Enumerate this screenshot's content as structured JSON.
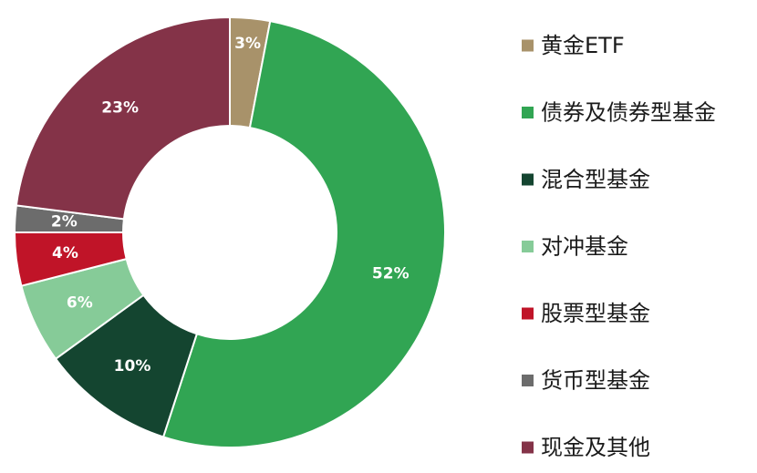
{
  "chart_data": {
    "type": "pie",
    "donut": true,
    "legend_position": "right",
    "categories": [
      "黄金ETF",
      "债券及债券型基金",
      "混合型基金",
      "对冲基金",
      "股票型基金",
      "货币型基金",
      "现金及其他"
    ],
    "values": [
      3,
      52,
      10,
      6,
      4,
      2,
      23
    ],
    "labels": [
      "3%",
      "52%",
      "10%",
      "6%",
      "4%",
      "2%",
      "23%"
    ],
    "colors": [
      "#A8926A",
      "#31A553",
      "#144530",
      "#86CB98",
      "#C01428",
      "#6C6C6C",
      "#843348"
    ]
  }
}
